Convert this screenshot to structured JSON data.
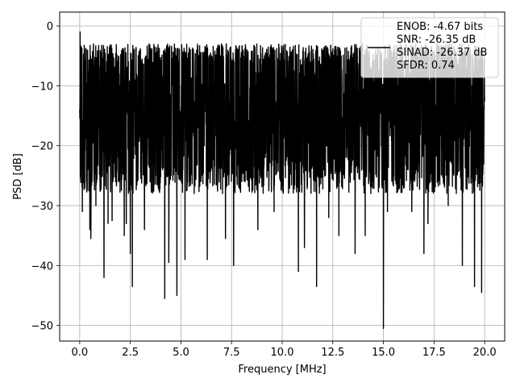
{
  "chart_data": {
    "type": "line",
    "title": "",
    "xlabel": "Frequency [MHz]",
    "ylabel": "PSD [dB]",
    "xlim": [
      -0.99,
      20.99
    ],
    "ylim": [
      -52.6,
      2.3
    ],
    "xticks": [
      0.0,
      2.5,
      5.0,
      7.5,
      10.0,
      12.5,
      15.0,
      17.5,
      20.0
    ],
    "xtick_labels": [
      "0.0",
      "2.5",
      "5.0",
      "7.5",
      "10.0",
      "12.5",
      "15.0",
      "17.5",
      "20.0"
    ],
    "yticks": [
      0,
      -10,
      -20,
      -30,
      -40,
      -50
    ],
    "ytick_labels": [
      "0",
      "−10",
      "−20",
      "−30",
      "−40",
      "−50"
    ],
    "grid": true,
    "legend_position": "top-right",
    "legend_entries": [
      "ENOB: -4.67 bits",
      "SNR: -26.35 dB",
      "SINAD: -26.37 dB",
      "SFDR: 0.74"
    ],
    "series": [
      {
        "color": "#000000",
        "x_range": [
          0,
          20
        ],
        "typical_range": [
          -23,
          -3
        ],
        "points": [
          [
            0.0,
            -14
          ],
          [
            0.02,
            -1
          ],
          [
            0.05,
            -8
          ],
          [
            0.1,
            -20
          ],
          [
            0.13,
            -31
          ],
          [
            0.18,
            -11
          ],
          [
            0.5,
            -34
          ],
          [
            0.55,
            -35.5
          ],
          [
            0.8,
            -30
          ],
          [
            1.2,
            -42
          ],
          [
            1.4,
            -33
          ],
          [
            1.6,
            -32.5
          ],
          [
            2.2,
            -35
          ],
          [
            2.3,
            -33
          ],
          [
            2.5,
            -38
          ],
          [
            2.6,
            -36
          ],
          [
            2.6,
            -43.5
          ],
          [
            3.2,
            -34
          ],
          [
            4.2,
            -45.5
          ],
          [
            4.4,
            -39.5
          ],
          [
            4.8,
            -45
          ],
          [
            5.2,
            -39
          ],
          [
            6.3,
            -39
          ],
          [
            7.2,
            -35.5
          ],
          [
            7.6,
            -40
          ],
          [
            8.8,
            -34
          ],
          [
            9.6,
            -31
          ],
          [
            10.8,
            -41
          ],
          [
            11.1,
            -37
          ],
          [
            11.7,
            -43.5
          ],
          [
            12.3,
            -32
          ],
          [
            12.8,
            -35
          ],
          [
            13.6,
            -38
          ],
          [
            14.1,
            -35
          ],
          [
            15.0,
            -50.5
          ],
          [
            15.2,
            -31
          ],
          [
            16.4,
            -31
          ],
          [
            17.0,
            -38
          ],
          [
            17.2,
            -33
          ],
          [
            18.2,
            -30
          ],
          [
            18.9,
            -40
          ],
          [
            19.5,
            -43.5
          ],
          [
            19.85,
            -44.5
          ],
          [
            20.0,
            -12
          ]
        ]
      }
    ]
  }
}
